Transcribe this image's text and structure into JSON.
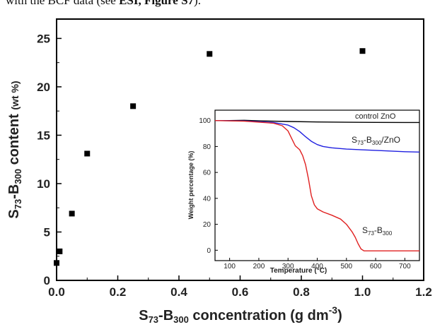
{
  "caption": {
    "prefix": "with the BCF data (see ",
    "bold": "ESI, Figure S7",
    "suffix": ")."
  },
  "chart_data": [
    {
      "type": "scatter",
      "title": "",
      "xlabel": {
        "main": "S",
        "sub1": "73",
        "mid": "-B",
        "sub2": "300",
        "rest": " concentration (g dm",
        "sup": "-3",
        "end": ")"
      },
      "ylabel": {
        "main": "S",
        "sub1": "73",
        "mid": "-B",
        "sub2": "300",
        "rest": " content ",
        "unit": "(wt %)"
      },
      "xlim": [
        0,
        1.2
      ],
      "ylim": [
        0,
        27
      ],
      "xticks": [
        "0.0",
        "0.2",
        "0.4",
        "0.6",
        "0.8",
        "1.0",
        "1.2"
      ],
      "yticks": [
        "0",
        "5",
        "10",
        "15",
        "20",
        "25"
      ],
      "xtick_values": [
        0,
        0.2,
        0.4,
        0.6,
        0.8,
        1.0,
        1.2
      ],
      "ytick_values": [
        0,
        5,
        10,
        15,
        20,
        25
      ],
      "marker": "square",
      "marker_color": "#000000",
      "x": [
        0,
        0.01,
        0.05,
        0.1,
        0.25,
        0.5,
        1.0
      ],
      "y": [
        1.8,
        3.0,
        6.9,
        13.1,
        18.0,
        23.4,
        23.7
      ],
      "grid": false
    },
    {
      "type": "line",
      "title": "",
      "xlabel": "Temperature (°C)",
      "ylabel": "Weight percentage (%)",
      "xlim": [
        50,
        750
      ],
      "ylim": [
        -8,
        108
      ],
      "xticks": [
        "100",
        "200",
        "300",
        "400",
        "500",
        "600",
        "700"
      ],
      "yticks": [
        "0",
        "20",
        "40",
        "60",
        "80",
        "100"
      ],
      "xtick_values": [
        100,
        200,
        300,
        400,
        500,
        600,
        700
      ],
      "ytick_values": [
        0,
        20,
        40,
        60,
        80,
        100
      ],
      "grid": false,
      "series": [
        {
          "name": "control ZnO",
          "color": "#000000",
          "x": [
            50,
            100,
            150,
            200,
            300,
            400,
            500,
            600,
            700,
            750
          ],
          "y": [
            100,
            100,
            100.2,
            99.8,
            99.3,
            98.9,
            98.7,
            98.6,
            98.5,
            98.5
          ]
        },
        {
          "name": "S73-B300/ZnO",
          "label": {
            "main": "S",
            "sub1": "73",
            "mid": "-B",
            "sub2": "300",
            "rest": "/ZnO"
          },
          "color": "#1f1fe0",
          "x": [
            50,
            150,
            250,
            300,
            320,
            340,
            360,
            380,
            400,
            420,
            450,
            500,
            600,
            700,
            750
          ],
          "y": [
            100,
            99.7,
            98.5,
            96.5,
            94.5,
            91.5,
            87.5,
            84,
            81.5,
            80,
            79,
            78,
            77,
            76,
            75.7
          ]
        },
        {
          "name": "S73-B300",
          "label": {
            "main": "S",
            "sub1": "73",
            "mid": "-B",
            "sub2": "300",
            "rest": ""
          },
          "color": "#e02020",
          "x": [
            50,
            150,
            250,
            280,
            300,
            315,
            325,
            340,
            350,
            360,
            370,
            380,
            390,
            400,
            420,
            450,
            480,
            500,
            520,
            530,
            540,
            550,
            560,
            600,
            700,
            750
          ],
          "y": [
            100,
            99.5,
            98,
            96,
            92,
            85,
            80.5,
            77.5,
            73,
            66,
            55,
            42,
            35,
            32,
            29.5,
            27,
            24,
            20,
            14,
            10,
            5,
            1,
            -0.5,
            -0.5,
            -0.5,
            -0.5
          ]
        }
      ]
    }
  ]
}
